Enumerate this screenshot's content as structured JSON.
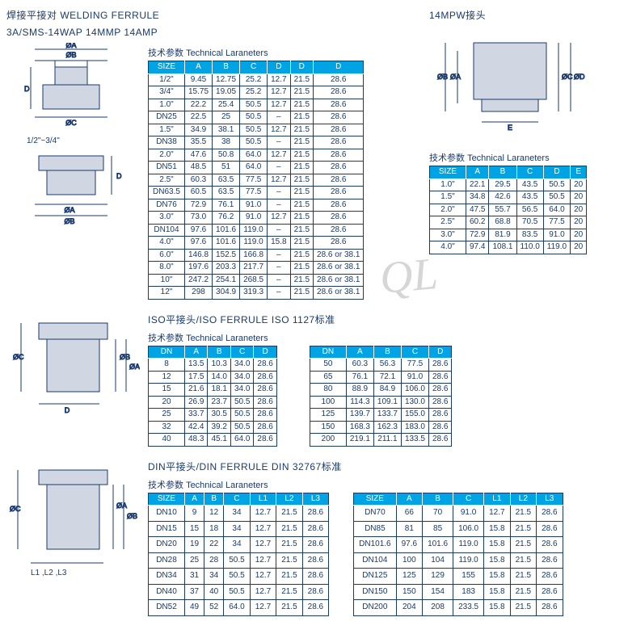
{
  "colors": {
    "accent": "#00a4e4",
    "text": "#1a3a6e",
    "border": "#1a3a6e",
    "header_text": "#ffffff"
  },
  "watermark": "QL",
  "section1": {
    "title_cn": "焊接平接对 WELDING FERRULE",
    "title2": "3A/SMS-14WAP 14MMP  14AMP",
    "param_label_cn": "技术参数",
    "param_label_en": "Technical Laraneters",
    "diagram_label": "1/2\"~3/4\"",
    "dims": [
      "ØA",
      "ØB",
      "ØC",
      "D"
    ],
    "headers": [
      "SIZE",
      "A",
      "B",
      "C",
      "D",
      "D",
      "D"
    ],
    "rows": [
      [
        "1/2\"",
        "9.45",
        "12.75",
        "25.2",
        "12.7",
        "21.5",
        "28.6"
      ],
      [
        "3/4\"",
        "15.75",
        "19.05",
        "25.2",
        "12.7",
        "21.5",
        "28.6"
      ],
      [
        "1.0\"",
        "22.2",
        "25.4",
        "50.5",
        "12.7",
        "21.5",
        "28.6"
      ],
      [
        "DN25",
        "22.5",
        "25",
        "50.5",
        "–",
        "21.5",
        "28.6"
      ],
      [
        "1.5\"",
        "34.9",
        "38.1",
        "50.5",
        "12.7",
        "21.5",
        "28.6"
      ],
      [
        "DN38",
        "35.5",
        "38",
        "50.5",
        "–",
        "21.5",
        "28.6"
      ],
      [
        "2.0\"",
        "47.6",
        "50.8",
        "64.0",
        "12.7",
        "21.5",
        "28.6"
      ],
      [
        "DN51",
        "48.5",
        "51",
        "64.0",
        "–",
        "21.5",
        "28.6"
      ],
      [
        "2.5\"",
        "60.3",
        "63.5",
        "77.5",
        "12.7",
        "21.5",
        "28.6"
      ],
      [
        "DN63.5",
        "60.5",
        "63.5",
        "77.5",
        "–",
        "21.5",
        "28.6"
      ],
      [
        "DN76",
        "72.9",
        "76.1",
        "91.0",
        "–",
        "21.5",
        "28.6"
      ],
      [
        "3.0\"",
        "73.0",
        "76.2",
        "91.0",
        "12.7",
        "21.5",
        "28.6"
      ],
      [
        "DN104",
        "97.6",
        "101.6",
        "119.0",
        "–",
        "21.5",
        "28.6"
      ],
      [
        "4.0\"",
        "97.6",
        "101.6",
        "119.0",
        "15.8",
        "21.5",
        "28.6"
      ],
      [
        "6.0\"",
        "146.8",
        "152.5",
        "166.8",
        "–",
        "21.5",
        "28.6 or 38.1"
      ],
      [
        "8.0\"",
        "197.6",
        "203.3",
        "217.7",
        "–",
        "21.5",
        "28.6 or 38.1"
      ],
      [
        "10\"",
        "247.2",
        "254.1",
        "268.5",
        "–",
        "21.5",
        "28.6 or 38.1"
      ],
      [
        "12\"",
        "298",
        "304.9",
        "319.3",
        "–",
        "21.5",
        "28.6 or 38.1"
      ]
    ]
  },
  "section2": {
    "title": "14MPW接头",
    "param_label_cn": "技术参数",
    "param_label_en": "Technical Laraneters",
    "dims": [
      "ØA",
      "ØB",
      "ØC",
      "ØD",
      "E"
    ],
    "headers": [
      "SIZE",
      "A",
      "B",
      "C",
      "D",
      "E"
    ],
    "rows": [
      [
        "1.0\"",
        "22.1",
        "29.5",
        "43.5",
        "50.5",
        "20"
      ],
      [
        "1.5\"",
        "34.8",
        "42.6",
        "43.5",
        "50.5",
        "20"
      ],
      [
        "2.0\"",
        "47.5",
        "55.7",
        "56.5",
        "64.0",
        "20"
      ],
      [
        "2.5\"",
        "60.2",
        "68.8",
        "70.5",
        "77.5",
        "20"
      ],
      [
        "3.0\"",
        "72.9",
        "81.9",
        "83.5",
        "91.0",
        "20"
      ],
      [
        "4.0\"",
        "97.4",
        "108.1",
        "110.0",
        "119.0",
        "20"
      ]
    ]
  },
  "section3": {
    "title": "ISO平接头/ISO FERRULE   ISO  1127标准",
    "param_label_cn": "技术参数",
    "param_label_en": "Technical Laraneters",
    "dims": [
      "ØA",
      "ØB",
      "ØC",
      "D"
    ],
    "headers": [
      "DN",
      "A",
      "B",
      "C",
      "D"
    ],
    "rows_left": [
      [
        "8",
        "13.5",
        "10.3",
        "34.0",
        "28.6"
      ],
      [
        "12",
        "17.5",
        "14.0",
        "34.0",
        "28.6"
      ],
      [
        "15",
        "21.6",
        "18.1",
        "34.0",
        "28.6"
      ],
      [
        "20",
        "26.9",
        "23.7",
        "50.5",
        "28.6"
      ],
      [
        "25",
        "33.7",
        "30.5",
        "50.5",
        "28.6"
      ],
      [
        "32",
        "42.4",
        "39.2",
        "50.5",
        "28.6"
      ],
      [
        "40",
        "48.3",
        "45.1",
        "64.0",
        "28.6"
      ]
    ],
    "rows_right": [
      [
        "50",
        "60.3",
        "56.3",
        "77.5",
        "28.6"
      ],
      [
        "65",
        "76.1",
        "72.1",
        "91.0",
        "28.6"
      ],
      [
        "80",
        "88.9",
        "84.9",
        "106.0",
        "28.6"
      ],
      [
        "100",
        "114.3",
        "109.1",
        "130.0",
        "28.6"
      ],
      [
        "125",
        "139.7",
        "133.7",
        "155.0",
        "28.6"
      ],
      [
        "150",
        "168.3",
        "162.3",
        "183.0",
        "28.6"
      ],
      [
        "200",
        "219.1",
        "211.1",
        "133.5",
        "28.6"
      ]
    ]
  },
  "section4": {
    "title": "DIN平接头/DIN FERRULE   DIN  32767标准",
    "param_label_cn": "技术参数",
    "param_label_en": "Technical Laraneters",
    "dims": [
      "ØA",
      "ØB",
      "ØC",
      "L1",
      "L2",
      "L3"
    ],
    "diagram_label": "L1 ,L2 ,L3",
    "headers": [
      "SIZE",
      "A",
      "B",
      "C",
      "L1",
      "L2",
      "L3"
    ],
    "rows_left": [
      [
        "DN10",
        "9",
        "12",
        "34",
        "12.7",
        "21.5",
        "28.6"
      ],
      [
        "DN15",
        "15",
        "18",
        "34",
        "12.7",
        "21.5",
        "28.6"
      ],
      [
        "DN20",
        "19",
        "22",
        "34",
        "12.7",
        "21.5",
        "28.6"
      ],
      [
        "DN28",
        "25",
        "28",
        "50.5",
        "12.7",
        "21.5",
        "28.6"
      ],
      [
        "DN34",
        "31",
        "34",
        "50.5",
        "12.7",
        "21.5",
        "28.6"
      ],
      [
        "DN40",
        "37",
        "40",
        "50.5",
        "12.7",
        "21.5",
        "28.6"
      ],
      [
        "DN52",
        "49",
        "52",
        "64.0",
        "12.7",
        "21.5",
        "28.6"
      ]
    ],
    "rows_right": [
      [
        "DN70",
        "66",
        "70",
        "91.0",
        "12.7",
        "21.5",
        "28.6"
      ],
      [
        "DN85",
        "81",
        "85",
        "106.0",
        "15.8",
        "21.5",
        "28.6"
      ],
      [
        "DN101.6",
        "97.6",
        "101.6",
        "119.0",
        "15.8",
        "21.5",
        "28.6"
      ],
      [
        "DN104",
        "100",
        "104",
        "119.0",
        "15.8",
        "21.5",
        "28.6"
      ],
      [
        "DN125",
        "125",
        "129",
        "155",
        "15.8",
        "21.5",
        "28.6"
      ],
      [
        "DN150",
        "150",
        "154",
        "183",
        "15.8",
        "21.5",
        "28.6"
      ],
      [
        "DN200",
        "204",
        "208",
        "233.5",
        "15.8",
        "21.5",
        "28.6"
      ]
    ]
  }
}
